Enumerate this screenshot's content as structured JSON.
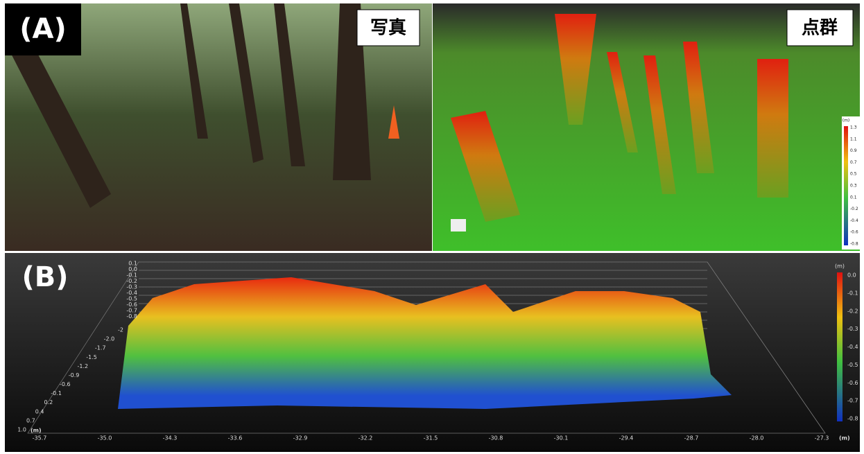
{
  "panel_a": {
    "label": "(A)",
    "photo_label": "写真",
    "cloud_label": "点群",
    "colorbar": {
      "unit": "(m)",
      "ticks": [
        "1.3",
        "1.1",
        "0.9",
        "0.7",
        "0.5",
        "0.3",
        "0.1",
        "-0.2",
        "-0.4",
        "-0.6",
        "-0.8"
      ]
    }
  },
  "panel_b": {
    "label": "(B)",
    "colorbar": {
      "unit": "(m)",
      "ticks": [
        "0.0",
        "-0.1",
        "-0.2",
        "-0.3",
        "-0.4",
        "-0.5",
        "-0.6",
        "-0.7",
        "-0.8"
      ]
    },
    "x_axis": {
      "unit": "(m)",
      "ticks": [
        "-35.7",
        "-35.0",
        "-34.3",
        "-33.6",
        "-32.9",
        "-32.2",
        "-31.5",
        "-30.8",
        "-30.1",
        "-29.4",
        "-28.7",
        "-28.0",
        "-27.3"
      ]
    },
    "y_axis": {
      "unit": "(m)",
      "ticks": [
        "1.0",
        "0.7",
        "0.4",
        "0.2",
        "-0.1",
        "-0.6",
        "-0.9",
        "-1.2",
        "-1.5",
        "-1.7",
        "-2.0",
        "-2"
      ]
    },
    "z_axis": {
      "ticks": [
        "0.1",
        "0.0",
        "-0.1",
        "-0.2",
        "-0.3",
        "-0.4",
        "-0.5",
        "-0.6",
        "-0.7",
        "-0.8"
      ]
    }
  }
}
